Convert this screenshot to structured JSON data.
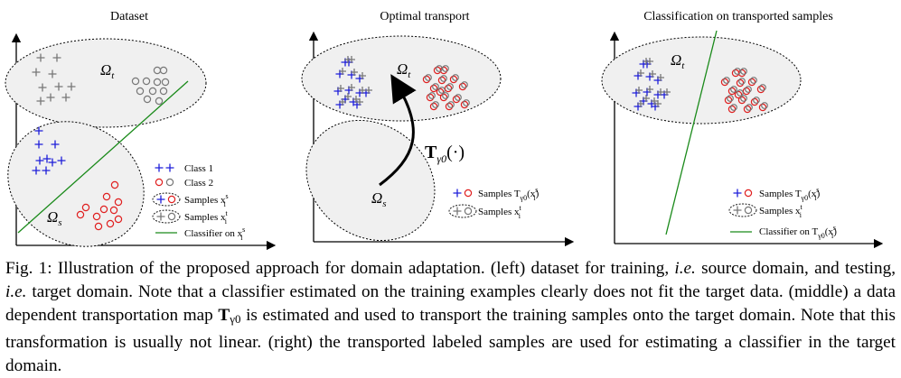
{
  "panels": {
    "left": {
      "title": "Dataset"
    },
    "middle": {
      "title": "Optimal transport"
    },
    "right": {
      "title": "Classification on transported samples"
    }
  },
  "labels": {
    "omega_t": "Ω",
    "omega_t_sub": "t",
    "omega_s": "Ω",
    "omega_s_sub": "s",
    "transport_map": "T",
    "transport_map_sub": "γ0",
    "transport_map_arg": "(·)"
  },
  "legend": {
    "left": [
      "Class 1",
      "Class 2",
      "Samples x",
      "Samples x",
      "Classifier on x"
    ],
    "middle": [
      "Samples T",
      "Samples x"
    ],
    "right": [
      "Samples T",
      "Samples x",
      "Classifier on T"
    ]
  },
  "colors": {
    "class1": "#1f1fd9",
    "class2": "#e01f1f",
    "target": "#777777",
    "classifier": "#1a8a1a",
    "region_fill": "#f0f0f0"
  },
  "caption": {
    "fig": "Fig. 1:",
    "t1": " Illustration of the proposed approach for domain adaptation. (left) dataset for training, ",
    "ie1": "i.e.",
    "t2": " source domain, and testing, ",
    "ie2": "i.e.",
    "t3": " target domain. Note that a classifier estimated on the training examples clearly does not fit the target data. (middle) a data dependent transportation map ",
    "T": "T",
    "Tsub": "γ0",
    "t4": " is estimated and used to transport the training samples onto the target domain. Note that this transformation is usually not linear. (right) the transported labeled samples are used for estimating a classifier in the target domain."
  }
}
